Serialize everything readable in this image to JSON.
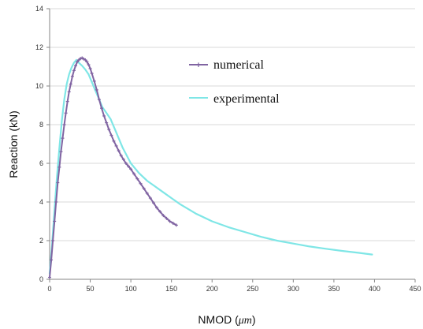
{
  "chart_data": {
    "type": "line",
    "xlabel_prefix": "NMOD (",
    "xlabel_unit": "μm",
    "xlabel_suffix": ")",
    "ylabel": "Reaction  (kN)",
    "xlim": [
      0,
      450
    ],
    "ylim": [
      0,
      14
    ],
    "x_ticks": [
      "0",
      "50",
      "100",
      "150",
      "200",
      "250",
      "300",
      "350",
      "400",
      "450"
    ],
    "y_ticks": [
      "0",
      "2",
      "4",
      "6",
      "8",
      "10",
      "12",
      "14"
    ],
    "grid": "horizontal",
    "legend_position": "top-right",
    "series": [
      {
        "name": "numerical",
        "color": "#8064a2",
        "marker": "plus",
        "x": [
          0,
          2,
          4,
          6,
          8,
          10,
          12,
          14,
          16,
          18,
          20,
          22,
          24,
          26,
          28,
          30,
          32,
          34,
          36,
          38,
          40,
          42,
          44,
          46,
          48,
          50,
          52,
          55,
          58,
          61,
          64,
          67,
          70,
          73,
          76,
          79,
          82,
          85,
          88,
          91,
          94,
          97,
          100,
          104,
          108,
          112,
          116,
          120,
          124,
          128,
          132,
          136,
          140,
          144,
          148,
          152,
          156
        ],
        "y": [
          0.1,
          1.0,
          2.0,
          3.0,
          4.0,
          5.0,
          5.8,
          6.6,
          7.3,
          8.0,
          8.6,
          9.2,
          9.7,
          10.1,
          10.5,
          10.8,
          11.05,
          11.25,
          11.35,
          11.42,
          11.45,
          11.4,
          11.35,
          11.25,
          11.1,
          10.9,
          10.65,
          10.25,
          9.8,
          9.3,
          8.85,
          8.45,
          8.1,
          7.75,
          7.45,
          7.15,
          6.9,
          6.65,
          6.4,
          6.2,
          6.0,
          5.85,
          5.7,
          5.45,
          5.2,
          4.95,
          4.7,
          4.45,
          4.2,
          3.95,
          3.7,
          3.5,
          3.3,
          3.15,
          3.0,
          2.9,
          2.8
        ]
      },
      {
        "name": "experimental",
        "color": "#7fe6e6",
        "marker": "none",
        "x": [
          0,
          3,
          6,
          9,
          12,
          15,
          18,
          21,
          24,
          27,
          30,
          33,
          36,
          40,
          44,
          48,
          52,
          56,
          60,
          65,
          70,
          75,
          80,
          90,
          100,
          110,
          120,
          130,
          140,
          150,
          160,
          170,
          180,
          200,
          220,
          240,
          260,
          280,
          300,
          320,
          340,
          360,
          380,
          397
        ],
        "y": [
          0.3,
          1.8,
          3.6,
          5.3,
          6.8,
          8.2,
          9.3,
          10.1,
          10.6,
          10.95,
          11.2,
          11.35,
          11.2,
          11.05,
          10.85,
          10.6,
          10.2,
          9.8,
          9.4,
          8.9,
          8.6,
          8.3,
          7.8,
          6.8,
          6.0,
          5.5,
          5.1,
          4.8,
          4.5,
          4.2,
          3.9,
          3.65,
          3.4,
          3.0,
          2.7,
          2.45,
          2.2,
          2.0,
          1.85,
          1.7,
          1.58,
          1.47,
          1.37,
          1.28
        ]
      }
    ]
  }
}
